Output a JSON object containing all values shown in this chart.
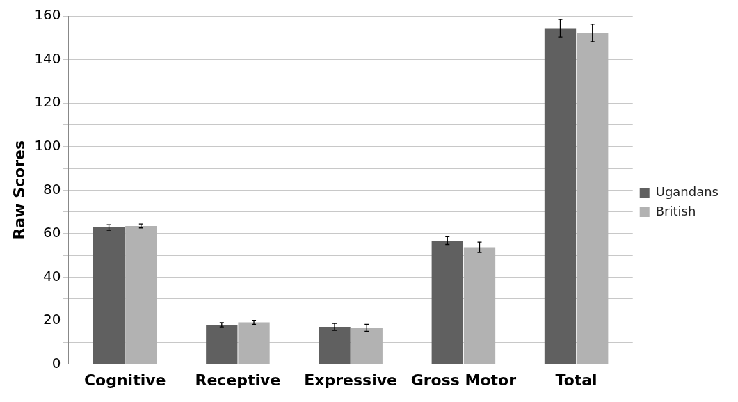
{
  "chart_data": {
    "type": "bar",
    "ylabel": "Raw Scores",
    "categories": [
      "Cognitive",
      "Receptive",
      "Expressive",
      "Gross Motor",
      "Total"
    ],
    "series": [
      {
        "name": "Ugandans",
        "color": "#606060",
        "values": [
          62.8,
          18.1,
          17.1,
          56.8,
          154.4
        ],
        "errors": [
          1.3,
          1,
          1.6,
          1.8,
          4
        ]
      },
      {
        "name": "British",
        "color": "#b2b2b2",
        "values": [
          63.5,
          19.2,
          16.7,
          53.7,
          152.2
        ],
        "errors": [
          0.9,
          0.9,
          1.6,
          2.4,
          4
        ]
      }
    ],
    "ylim": [
      0,
      160
    ],
    "yticks": [
      0,
      {
        "value": 10,
        "label": null
      },
      20,
      {
        "value": 30,
        "label": null
      },
      40,
      {
        "value": 50,
        "label": null
      },
      60,
      {
        "value": 70,
        "label": null
      },
      80,
      {
        "value": 90,
        "label": null
      },
      100,
      {
        "value": 110,
        "label": null
      },
      120,
      {
        "value": 130,
        "label": null
      },
      140,
      {
        "value": 150,
        "label": null
      },
      160
    ],
    "grid": "y",
    "legend": "right"
  }
}
